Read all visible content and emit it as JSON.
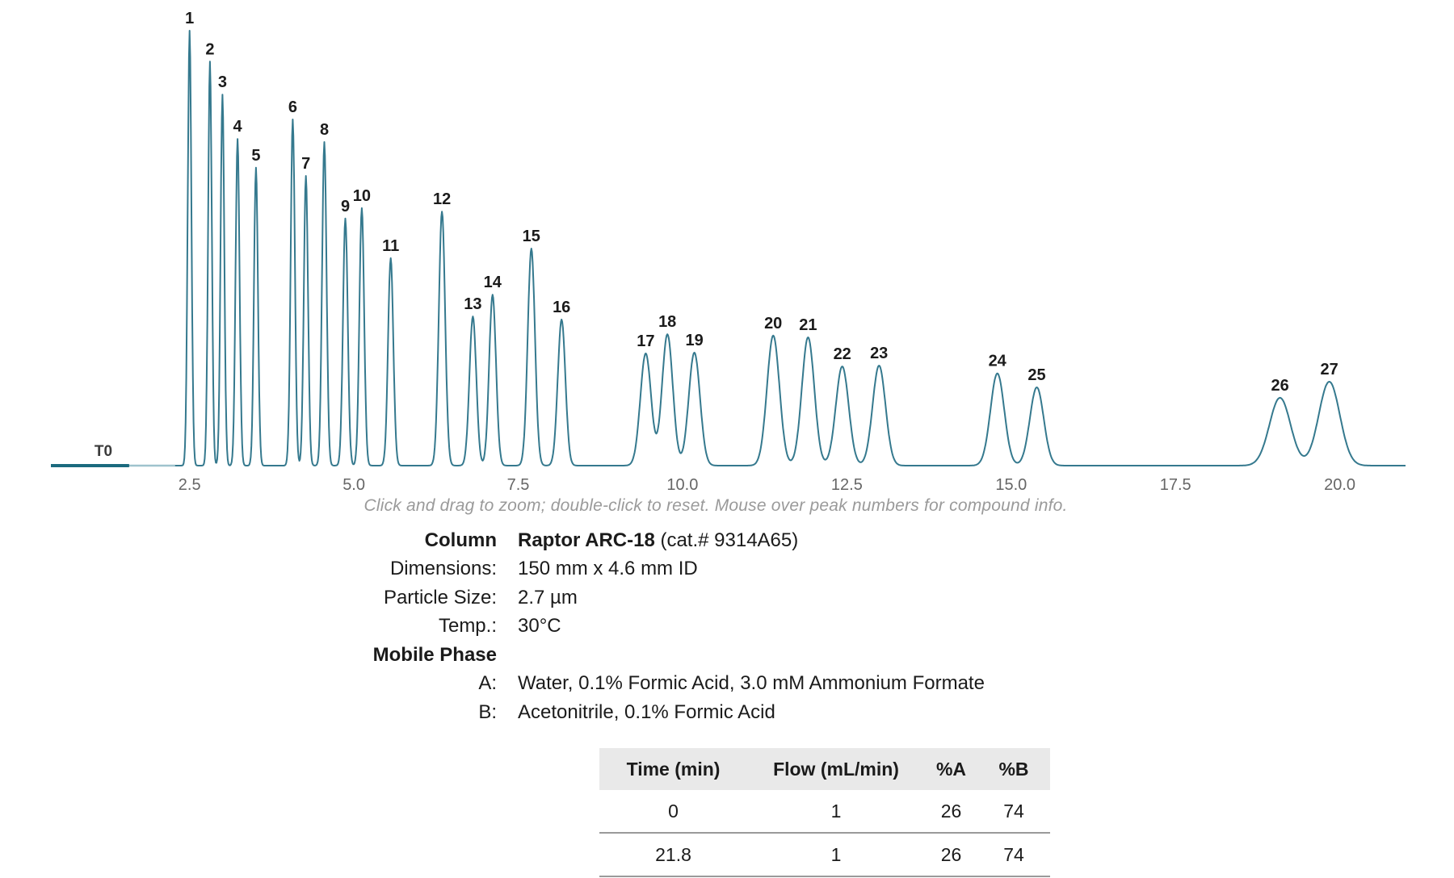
{
  "ui": {
    "t0_label": "T0",
    "hint": "Click and drag to zoom; double-click to reset. Mouse over peak numbers for compound info."
  },
  "chart_data": {
    "type": "line",
    "title": "",
    "xlabel": "",
    "ylabel": "",
    "x_range_min": [
      0.39,
      21.0
    ],
    "grid": false,
    "legend": "none",
    "t0_time_min": 1.58,
    "axis_ticks": [
      {
        "t": 2.5,
        "label": "2.5"
      },
      {
        "t": 5.0,
        "label": "5.0"
      },
      {
        "t": 7.5,
        "label": "7.5"
      },
      {
        "t": 10.0,
        "label": "10.0"
      },
      {
        "t": 12.5,
        "label": "12.5"
      },
      {
        "t": 15.0,
        "label": "15.0"
      },
      {
        "t": 17.5,
        "label": "17.5"
      },
      {
        "t": 20.0,
        "label": "20.0"
      }
    ],
    "peaks": [
      {
        "label": "1",
        "rt": 2.5,
        "height": 1.0,
        "sigma": 0.028
      },
      {
        "label": "2",
        "rt": 2.81,
        "height": 0.929,
        "sigma": 0.028
      },
      {
        "label": "3",
        "rt": 3.0,
        "height": 0.853,
        "sigma": 0.028
      },
      {
        "label": "4",
        "rt": 3.23,
        "height": 0.751,
        "sigma": 0.03
      },
      {
        "label": "5",
        "rt": 3.51,
        "height": 0.685,
        "sigma": 0.03
      },
      {
        "label": "6",
        "rt": 4.07,
        "height": 0.796,
        "sigma": 0.032
      },
      {
        "label": "7",
        "rt": 4.27,
        "height": 0.666,
        "sigma": 0.032
      },
      {
        "label": "8",
        "rt": 4.55,
        "height": 0.744,
        "sigma": 0.034
      },
      {
        "label": "9",
        "rt": 4.87,
        "height": 0.568,
        "sigma": 0.036
      },
      {
        "label": "10",
        "rt": 5.12,
        "height": 0.592,
        "sigma": 0.036
      },
      {
        "label": "11",
        "rt": 5.56,
        "height": 0.477,
        "sigma": 0.04
      },
      {
        "label": "12",
        "rt": 6.34,
        "height": 0.584,
        "sigma": 0.048
      },
      {
        "label": "13",
        "rt": 6.81,
        "height": 0.343,
        "sigma": 0.052
      },
      {
        "label": "14",
        "rt": 7.11,
        "height": 0.393,
        "sigma": 0.052
      },
      {
        "label": "15",
        "rt": 7.7,
        "height": 0.499,
        "sigma": 0.055
      },
      {
        "label": "16",
        "rt": 8.16,
        "height": 0.336,
        "sigma": 0.058
      },
      {
        "label": "17",
        "rt": 9.44,
        "height": 0.258,
        "sigma": 0.082
      },
      {
        "label": "18",
        "rt": 9.77,
        "height": 0.302,
        "sigma": 0.082
      },
      {
        "label": "19",
        "rt": 10.18,
        "height": 0.26,
        "sigma": 0.086
      },
      {
        "label": "20",
        "rt": 11.38,
        "height": 0.299,
        "sigma": 0.095
      },
      {
        "label": "21",
        "rt": 11.91,
        "height": 0.295,
        "sigma": 0.095
      },
      {
        "label": "22",
        "rt": 12.43,
        "height": 0.228,
        "sigma": 0.098
      },
      {
        "label": "23",
        "rt": 12.99,
        "height": 0.23,
        "sigma": 0.098
      },
      {
        "label": "24",
        "rt": 14.79,
        "height": 0.212,
        "sigma": 0.105
      },
      {
        "label": "25",
        "rt": 15.39,
        "height": 0.18,
        "sigma": 0.105
      },
      {
        "label": "26",
        "rt": 19.09,
        "height": 0.156,
        "sigma": 0.16
      },
      {
        "label": "27",
        "rt": 19.84,
        "height": 0.193,
        "sigma": 0.16
      }
    ],
    "colors": {
      "trace": "#35798e",
      "pre_t0_segment": "#1b6a7e",
      "post_t0_segment": "#9fc3cd",
      "tick_text": "#666666",
      "peak_label_text": "#1b1b1b"
    }
  },
  "conditions": {
    "column_label": "Column",
    "column_value_bold": "Raptor ARC-18",
    "column_value_rest": " (cat.# 9314A65)",
    "dimensions_label": "Dimensions:",
    "dimensions_value": "150 mm x 4.6 mm ID",
    "particle_label": "Particle Size:",
    "particle_value": "2.7 µm",
    "temp_label": "Temp.:",
    "temp_value": "30°C",
    "mobile_phase_label": "Mobile Phase",
    "a_label": "A:",
    "a_value": "Water, 0.1% Formic Acid, 3.0 mM Ammonium Formate",
    "b_label": "B:",
    "b_value": "Acetonitrile, 0.1% Formic Acid"
  },
  "gradient_table": {
    "columns": [
      "Time (min)",
      "Flow (mL/min)",
      "%A",
      "%B"
    ],
    "rows": [
      [
        "0",
        "1",
        "26",
        "74"
      ],
      [
        "21.8",
        "1",
        "26",
        "74"
      ]
    ]
  }
}
